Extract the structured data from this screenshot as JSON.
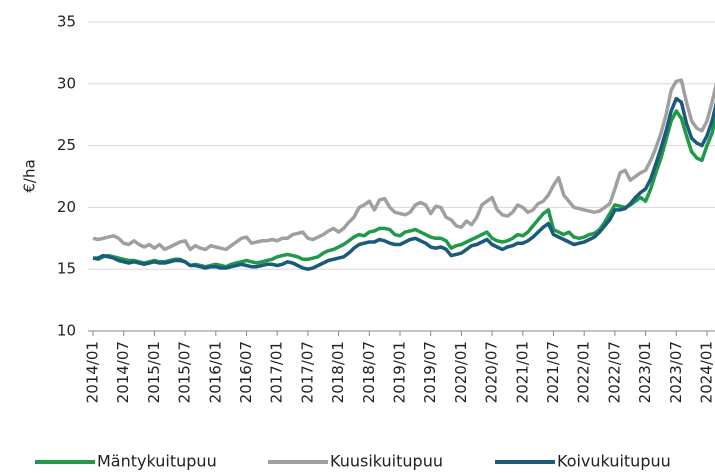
{
  "chart_data": {
    "type": "line",
    "y_label": "€/ha",
    "categories": [
      "2014/01",
      null,
      null,
      null,
      null,
      null,
      "2014/07",
      null,
      null,
      null,
      null,
      null,
      "2015/01",
      null,
      null,
      null,
      null,
      null,
      "2015/07",
      null,
      null,
      null,
      null,
      null,
      "2016/01",
      null,
      null,
      null,
      null,
      null,
      "2016/07",
      null,
      null,
      null,
      null,
      null,
      "2017/01",
      null,
      null,
      null,
      null,
      null,
      "2017/07",
      null,
      null,
      null,
      null,
      null,
      "2018/01",
      null,
      null,
      null,
      null,
      null,
      "2018/07",
      null,
      null,
      null,
      null,
      null,
      "2019/01",
      null,
      null,
      null,
      null,
      null,
      "2019/07",
      null,
      null,
      null,
      null,
      null,
      "2020/01",
      null,
      null,
      null,
      null,
      null,
      "2020/07",
      null,
      null,
      null,
      null,
      null,
      "2021/01",
      null,
      null,
      null,
      null,
      null,
      "2021/07",
      null,
      null,
      null,
      null,
      null,
      "2022/01",
      null,
      null,
      null,
      null,
      null,
      "2022/07",
      null,
      null,
      null,
      null,
      null,
      "2023/01",
      null,
      null,
      null,
      null,
      null,
      "2023/07",
      null,
      null,
      null,
      null,
      null,
      "2024/01",
      null,
      null
    ],
    "series": [
      {
        "name": "Mäntykuitupuu",
        "color": "#1e9a48",
        "values": [
          15.9,
          15.8,
          16.0,
          16.1,
          16.0,
          15.9,
          15.8,
          15.7,
          15.7,
          15.6,
          15.5,
          15.6,
          15.7,
          15.6,
          15.6,
          15.7,
          15.8,
          15.8,
          15.6,
          15.3,
          15.4,
          15.3,
          15.2,
          15.3,
          15.4,
          15.3,
          15.2,
          15.4,
          15.5,
          15.6,
          15.7,
          15.6,
          15.5,
          15.6,
          15.7,
          15.8,
          16.0,
          16.1,
          16.2,
          16.1,
          16.0,
          15.8,
          15.8,
          15.9,
          16.0,
          16.3,
          16.5,
          16.6,
          16.8,
          17.0,
          17.3,
          17.6,
          17.8,
          17.7,
          18.0,
          18.1,
          18.3,
          18.3,
          18.2,
          17.8,
          17.7,
          18.0,
          18.1,
          18.2,
          18.0,
          17.8,
          17.6,
          17.5,
          17.5,
          17.3,
          16.7,
          16.9,
          17.0,
          17.2,
          17.4,
          17.6,
          17.8,
          18.0,
          17.5,
          17.3,
          17.2,
          17.3,
          17.5,
          17.8,
          17.7,
          18.0,
          18.5,
          19.0,
          19.5,
          19.8,
          18.2,
          18.0,
          17.8,
          18.0,
          17.6,
          17.5,
          17.6,
          17.8,
          17.9,
          18.2,
          18.8,
          19.5,
          20.2,
          20.1,
          20.0,
          20.2,
          20.5,
          20.8,
          20.5,
          21.5,
          22.8,
          24.0,
          25.5,
          27.0,
          27.8,
          27.2,
          25.8,
          24.5,
          24.0,
          23.8,
          25.0,
          26.0,
          27.8
        ]
      },
      {
        "name": "Kuusikuitupuu",
        "color": "#a0a0a0",
        "values": [
          17.5,
          17.4,
          17.5,
          17.6,
          17.7,
          17.5,
          17.1,
          17.0,
          17.3,
          17.0,
          16.8,
          17.0,
          16.7,
          17.0,
          16.6,
          16.8,
          17.0,
          17.2,
          17.3,
          16.6,
          16.9,
          16.7,
          16.6,
          16.9,
          16.8,
          16.7,
          16.6,
          16.9,
          17.2,
          17.5,
          17.6,
          17.1,
          17.2,
          17.3,
          17.3,
          17.4,
          17.3,
          17.5,
          17.5,
          17.8,
          17.9,
          18.0,
          17.5,
          17.4,
          17.6,
          17.8,
          18.1,
          18.3,
          18.0,
          18.3,
          18.8,
          19.2,
          20.0,
          20.2,
          20.5,
          19.8,
          20.6,
          20.7,
          20.0,
          19.6,
          19.5,
          19.4,
          19.6,
          20.2,
          20.4,
          20.2,
          19.5,
          20.1,
          20.0,
          19.2,
          19.0,
          18.5,
          18.4,
          18.9,
          18.6,
          19.2,
          20.2,
          20.5,
          20.8,
          19.8,
          19.4,
          19.3,
          19.6,
          20.2,
          20.0,
          19.6,
          19.8,
          20.3,
          20.5,
          21.0,
          21.8,
          22.4,
          21.0,
          20.5,
          20.0,
          19.9,
          19.8,
          19.7,
          19.6,
          19.7,
          20.0,
          20.3,
          21.5,
          22.8,
          23.0,
          22.2,
          22.5,
          22.8,
          23.0,
          23.8,
          24.8,
          26.0,
          27.5,
          29.5,
          30.2,
          30.3,
          28.5,
          27.0,
          26.4,
          26.2,
          27.0,
          28.5,
          30.3
        ]
      },
      {
        "name": "Koivukuitupuu",
        "color": "#1b5a7a",
        "values": [
          15.9,
          15.9,
          16.1,
          16.0,
          15.9,
          15.7,
          15.6,
          15.5,
          15.6,
          15.5,
          15.4,
          15.5,
          15.6,
          15.5,
          15.5,
          15.6,
          15.7,
          15.7,
          15.6,
          15.3,
          15.3,
          15.2,
          15.1,
          15.2,
          15.2,
          15.1,
          15.1,
          15.2,
          15.3,
          15.4,
          15.3,
          15.2,
          15.2,
          15.3,
          15.4,
          15.4,
          15.3,
          15.4,
          15.6,
          15.5,
          15.3,
          15.1,
          15.0,
          15.1,
          15.3,
          15.5,
          15.7,
          15.8,
          15.9,
          16.0,
          16.3,
          16.7,
          17.0,
          17.1,
          17.2,
          17.2,
          17.4,
          17.3,
          17.1,
          17.0,
          17.0,
          17.2,
          17.4,
          17.5,
          17.3,
          17.1,
          16.8,
          16.7,
          16.8,
          16.6,
          16.1,
          16.2,
          16.3,
          16.6,
          16.9,
          17.0,
          17.2,
          17.4,
          17.0,
          16.8,
          16.6,
          16.8,
          16.9,
          17.1,
          17.1,
          17.3,
          17.6,
          18.0,
          18.4,
          18.7,
          17.8,
          17.6,
          17.4,
          17.2,
          17.0,
          17.1,
          17.2,
          17.4,
          17.6,
          18.0,
          18.5,
          19.0,
          19.8,
          19.8,
          19.9,
          20.3,
          20.8,
          21.2,
          21.5,
          22.3,
          23.5,
          24.8,
          26.2,
          27.8,
          28.8,
          28.5,
          26.8,
          25.6,
          25.2,
          25.0,
          25.8,
          27.0,
          28.7
        ]
      }
    ],
    "ylim": [
      10,
      35
    ],
    "yticks": [
      10,
      15,
      20,
      25,
      30,
      35
    ],
    "grid": true,
    "legend": "bottom"
  }
}
